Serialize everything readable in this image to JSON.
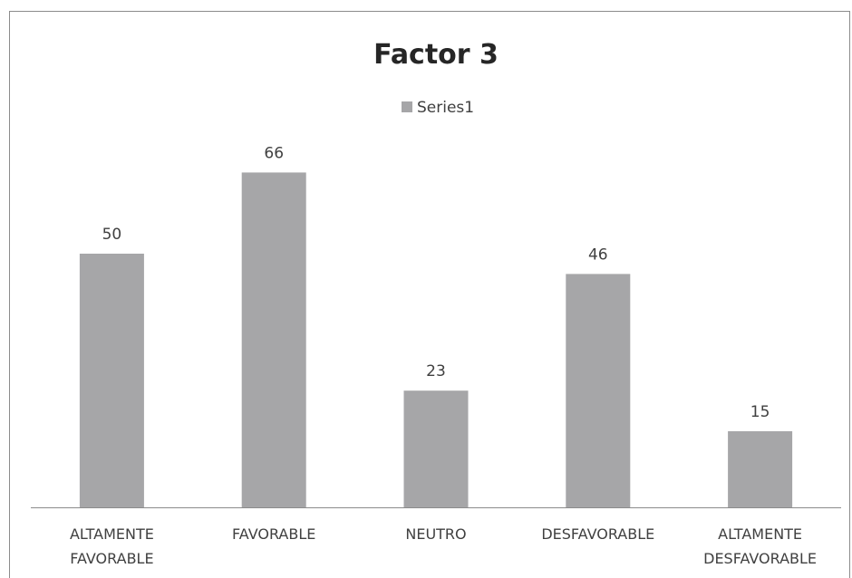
{
  "chart_data": {
    "type": "bar",
    "title": "Factor 3",
    "categories": [
      [
        "ALTAMENTE",
        "FAVORABLE"
      ],
      [
        "FAVORABLE"
      ],
      [
        "NEUTRO"
      ],
      [
        "DESFAVORABLE"
      ],
      [
        "ALTAMENTE",
        "DESFAVORABLE"
      ]
    ],
    "series": [
      {
        "name": "Series1",
        "values": [
          50,
          66,
          23,
          46,
          15
        ],
        "color": "#a6a6a8"
      }
    ],
    "ylim": [
      0,
      70
    ],
    "grid": false,
    "legend": "top-center",
    "data_labels": true
  }
}
